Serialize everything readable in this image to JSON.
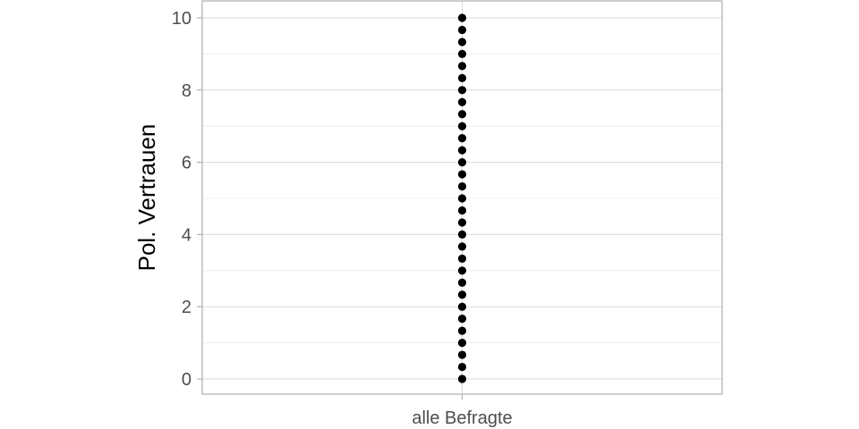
{
  "chart_data": {
    "type": "scatter",
    "title": "",
    "xlabel": "",
    "ylabel": "Pol. Vertrauen",
    "categories": [
      "alle Befragte"
    ],
    "yticks": [
      "0",
      "2",
      "4",
      "6",
      "8",
      "10"
    ],
    "ylim": [
      0,
      10
    ],
    "grid": true,
    "series": [
      {
        "category": "alle Befragte",
        "values": [
          0,
          0.333,
          0.667,
          1,
          1.333,
          1.667,
          2,
          2.333,
          2.667,
          3,
          3.333,
          3.667,
          4,
          4.333,
          4.667,
          5,
          5.333,
          5.667,
          6,
          6.333,
          6.667,
          7,
          7.333,
          7.667,
          8,
          8.333,
          8.667,
          9,
          9.333,
          9.667,
          10
        ]
      }
    ],
    "colors": {
      "point": "#000000",
      "grid": "#d9d9d9",
      "border": "#b3b3b3"
    }
  }
}
